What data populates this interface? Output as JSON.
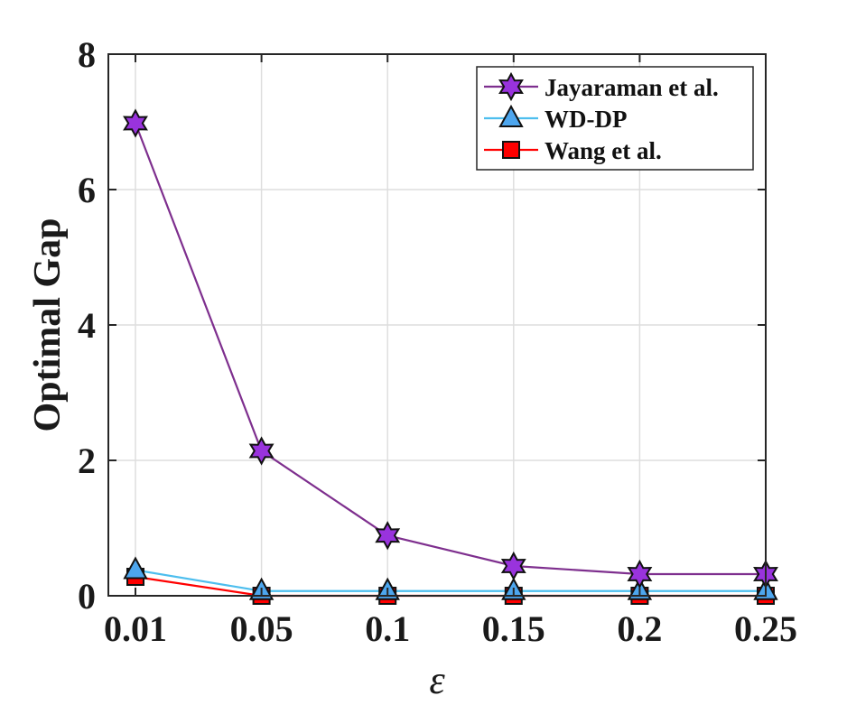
{
  "chart_data": {
    "type": "line",
    "x": [
      0.01,
      0.05,
      0.1,
      0.15,
      0.2,
      0.25
    ],
    "x_tick_labels": [
      "0.01",
      "0.05",
      "0.1",
      "0.15",
      "0.2",
      "0.25"
    ],
    "y_tick_labels": [
      "0",
      "2",
      "4",
      "6",
      "8"
    ],
    "xlabel": "ε",
    "ylabel": "Optimal Gap",
    "ylim": [
      0,
      8
    ],
    "yticks": [
      0,
      2,
      4,
      6,
      8
    ],
    "grid": true,
    "legend_position": "top-right",
    "series": [
      {
        "name": "Jayaraman et al.",
        "marker": "hexagram",
        "color": "#7E2F8E",
        "fill": "#9933DD",
        "values": [
          6.98,
          2.14,
          0.89,
          0.44,
          0.32,
          0.32
        ]
      },
      {
        "name": "WD-DP",
        "marker": "triangle",
        "color": "#4DBEEE",
        "fill": "#4DA6EE",
        "values": [
          0.38,
          0.07,
          0.07,
          0.07,
          0.07,
          0.07
        ]
      },
      {
        "name": "Wang et al.",
        "marker": "square",
        "color": "#FF0000",
        "fill": "#FF0000",
        "values": [
          0.28,
          0.0,
          0.0,
          0.0,
          0.0,
          0.0
        ]
      }
    ]
  }
}
